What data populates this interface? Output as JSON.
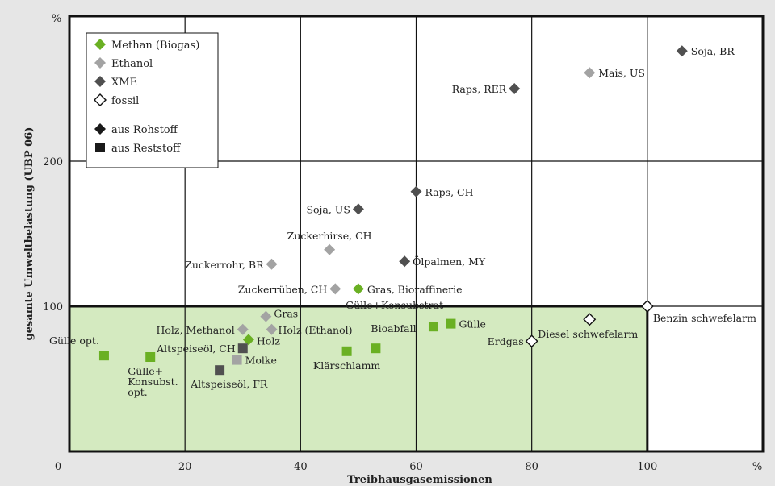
{
  "chart_data": {
    "type": "scatter",
    "title": "",
    "xlabel": "Treibhausgasemissionen",
    "ylabel": "gesamte Umweltbelastung (UBP 06)",
    "x_unit": "%",
    "y_unit": "%",
    "xlim": [
      0,
      120
    ],
    "ylim": [
      0,
      300
    ],
    "x_ticks": [
      "0",
      "20",
      "40",
      "60",
      "80",
      "100"
    ],
    "y_ticks": [
      "100",
      "200"
    ],
    "grid": true,
    "highlight_region": {
      "x": [
        0,
        100
      ],
      "y": [
        0,
        100
      ],
      "color": "#d4eac0"
    },
    "legend": {
      "placement": "top-left",
      "entries": [
        {
          "label": "Methan (Biogas)",
          "marker": "diamond",
          "color": "#6ab023"
        },
        {
          "label": "Ethanol",
          "marker": "diamond",
          "color": "#a3a3a3"
        },
        {
          "label": "XME",
          "marker": "diamond",
          "color": "#505050"
        },
        {
          "label": "fossil",
          "marker": "diamond",
          "color": "#ffffff"
        },
        {
          "label": "aus Rohstoff",
          "marker": "diamond",
          "color": "#1a1a1a"
        },
        {
          "label": "aus Reststoff",
          "marker": "square",
          "color": "#1a1a1a"
        }
      ]
    },
    "series": [
      {
        "name": "Methan (Biogas)",
        "color": "#6ab023",
        "points": [
          {
            "x": 6,
            "y": 66,
            "shape": "square",
            "label": "Gülle opt."
          },
          {
            "x": 14,
            "y": 65,
            "shape": "square",
            "label": "Gülle+\nKonsubst.\nopt."
          },
          {
            "x": 31,
            "y": 77,
            "shape": "diamond",
            "label": "Holz"
          },
          {
            "x": 48,
            "y": 69,
            "shape": "square",
            "label": "Klärschlamm"
          },
          {
            "x": 53,
            "y": 71,
            "shape": "square",
            "label": "Bioabfall"
          },
          {
            "x": 63,
            "y": 86,
            "shape": "square",
            "label": "Gülle+Konsubstrat"
          },
          {
            "x": 66,
            "y": 88,
            "shape": "square",
            "label": "Gülle"
          },
          {
            "x": 50,
            "y": 112,
            "shape": "diamond",
            "label": "Gras, Bioraffinerie"
          }
        ]
      },
      {
        "name": "Ethanol",
        "color": "#a3a3a3",
        "points": [
          {
            "x": 34,
            "y": 93,
            "shape": "diamond",
            "label": "Gras"
          },
          {
            "x": 30,
            "y": 84,
            "shape": "diamond",
            "label": "Holz, Methanol"
          },
          {
            "x": 35,
            "y": 84,
            "shape": "diamond",
            "label": "Holz (Ethanol)"
          },
          {
            "x": 29,
            "y": 63,
            "shape": "square",
            "label": "Molke"
          },
          {
            "x": 35,
            "y": 129,
            "shape": "diamond",
            "label": "Zuckerrohr, BR"
          },
          {
            "x": 45,
            "y": 139,
            "shape": "diamond",
            "label": "Zuckerhirse, CH"
          },
          {
            "x": 46,
            "y": 112,
            "shape": "diamond",
            "label": "Zuckerrüben, CH"
          },
          {
            "x": 90,
            "y": 261,
            "shape": "diamond",
            "label": "Mais, US"
          }
        ]
      },
      {
        "name": "XME",
        "color": "#505050",
        "points": [
          {
            "x": 30,
            "y": 71,
            "shape": "square",
            "label": "Altspeiseöl, CH"
          },
          {
            "x": 26,
            "y": 56,
            "shape": "square",
            "label": "Altspeiseöl, FR"
          },
          {
            "x": 50,
            "y": 167,
            "shape": "diamond",
            "label": "Soja, US"
          },
          {
            "x": 60,
            "y": 179,
            "shape": "diamond",
            "label": "Raps, CH"
          },
          {
            "x": 58,
            "y": 131,
            "shape": "diamond",
            "label": "Ölpalmen, MY"
          },
          {
            "x": 77,
            "y": 250,
            "shape": "diamond",
            "label": "Raps, RER"
          },
          {
            "x": 106,
            "y": 276,
            "shape": "diamond",
            "label": "Soja, BR"
          }
        ]
      },
      {
        "name": "fossil",
        "color": "#ffffff",
        "points": [
          {
            "x": 100,
            "y": 100,
            "shape": "diamond",
            "label": "Benzin schwefelarm"
          },
          {
            "x": 90,
            "y": 91,
            "shape": "diamond",
            "label": "Diesel schwefelarm"
          },
          {
            "x": 80,
            "y": 76,
            "shape": "diamond",
            "label": "Erdgas"
          }
        ]
      }
    ]
  }
}
